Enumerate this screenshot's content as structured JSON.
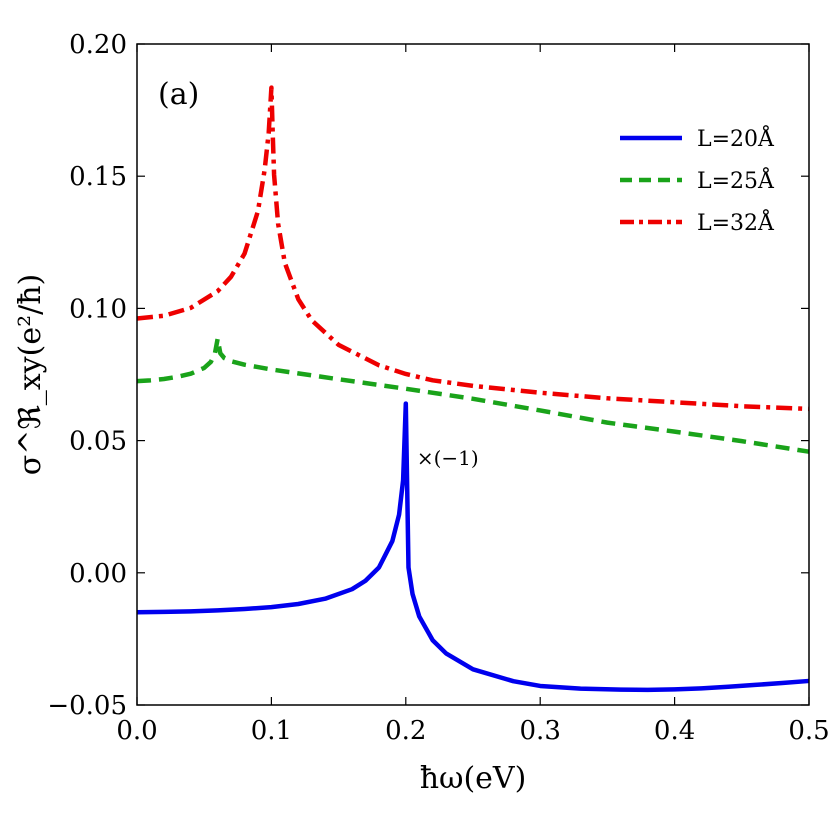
{
  "chart_data": {
    "type": "line",
    "panel_label": "(a)",
    "xlabel": "ħω(eV)",
    "ylabel": "σ^ℜ_xy(e²/ħ)",
    "xlim": [
      0.0,
      0.5
    ],
    "ylim": [
      -0.05,
      0.2
    ],
    "xticks": [
      0.0,
      0.1,
      0.2,
      0.3,
      0.4,
      0.5
    ],
    "xtick_labels": [
      "0.0",
      "0.1",
      "0.2",
      "0.3",
      "0.4",
      "0.5"
    ],
    "yticks": [
      -0.05,
      0.0,
      0.05,
      0.1,
      0.15,
      0.2
    ],
    "ytick_labels": [
      "−0.05",
      "0.00",
      "0.05",
      "0.10",
      "0.15",
      "0.20"
    ],
    "legend_position": "top-right",
    "annotation": {
      "text": "×(−1)",
      "x": 0.203,
      "y": 0.04
    },
    "series": [
      {
        "name": "L=20Å",
        "color": "#0000ee",
        "style": "solid",
        "x": [
          0.0,
          0.02,
          0.04,
          0.06,
          0.08,
          0.1,
          0.12,
          0.14,
          0.16,
          0.17,
          0.18,
          0.19,
          0.195,
          0.198,
          0.2,
          0.202,
          0.205,
          0.21,
          0.22,
          0.23,
          0.25,
          0.28,
          0.3,
          0.33,
          0.36,
          0.38,
          0.4,
          0.42,
          0.44,
          0.46,
          0.48,
          0.5
        ],
        "y": [
          -0.0149,
          -0.0148,
          -0.0146,
          -0.0142,
          -0.0137,
          -0.013,
          -0.0118,
          -0.0098,
          -0.0062,
          -0.003,
          0.002,
          0.012,
          0.022,
          0.035,
          0.064,
          0.002,
          -0.008,
          -0.0165,
          -0.0255,
          -0.0305,
          -0.0365,
          -0.041,
          -0.0428,
          -0.0438,
          -0.0442,
          -0.0443,
          -0.0441,
          -0.0437,
          -0.0431,
          -0.0424,
          -0.0417,
          -0.0409
        ]
      },
      {
        "name": "L=25Å",
        "color": "#1aa31a",
        "style": "dashed",
        "x": [
          0.0,
          0.01,
          0.02,
          0.03,
          0.04,
          0.05,
          0.055,
          0.058,
          0.06,
          0.062,
          0.065,
          0.07,
          0.08,
          0.1,
          0.15,
          0.2,
          0.25,
          0.3,
          0.35,
          0.4,
          0.45,
          0.5
        ],
        "y": [
          0.0725,
          0.0728,
          0.0733,
          0.0741,
          0.0753,
          0.0775,
          0.0798,
          0.083,
          0.0885,
          0.083,
          0.0812,
          0.08,
          0.0787,
          0.0769,
          0.0732,
          0.0696,
          0.0658,
          0.0614,
          0.0568,
          0.0534,
          0.0498,
          0.0458
        ]
      },
      {
        "name": "L=32Å",
        "color": "#ee0000",
        "style": "dashdot",
        "x": [
          0.0,
          0.02,
          0.04,
          0.06,
          0.07,
          0.08,
          0.09,
          0.095,
          0.098,
          0.1,
          0.101,
          0.102,
          0.105,
          0.11,
          0.12,
          0.13,
          0.15,
          0.18,
          0.2,
          0.22,
          0.25,
          0.3,
          0.35,
          0.4,
          0.45,
          0.5
        ],
        "y": [
          0.0962,
          0.0972,
          0.1002,
          0.1065,
          0.112,
          0.1207,
          0.1368,
          0.1525,
          0.1665,
          0.1835,
          0.166,
          0.1505,
          0.132,
          0.1172,
          0.1035,
          0.0955,
          0.0862,
          0.0785,
          0.0752,
          0.0728,
          0.0707,
          0.0681,
          0.066,
          0.0645,
          0.063,
          0.062
        ]
      }
    ]
  }
}
